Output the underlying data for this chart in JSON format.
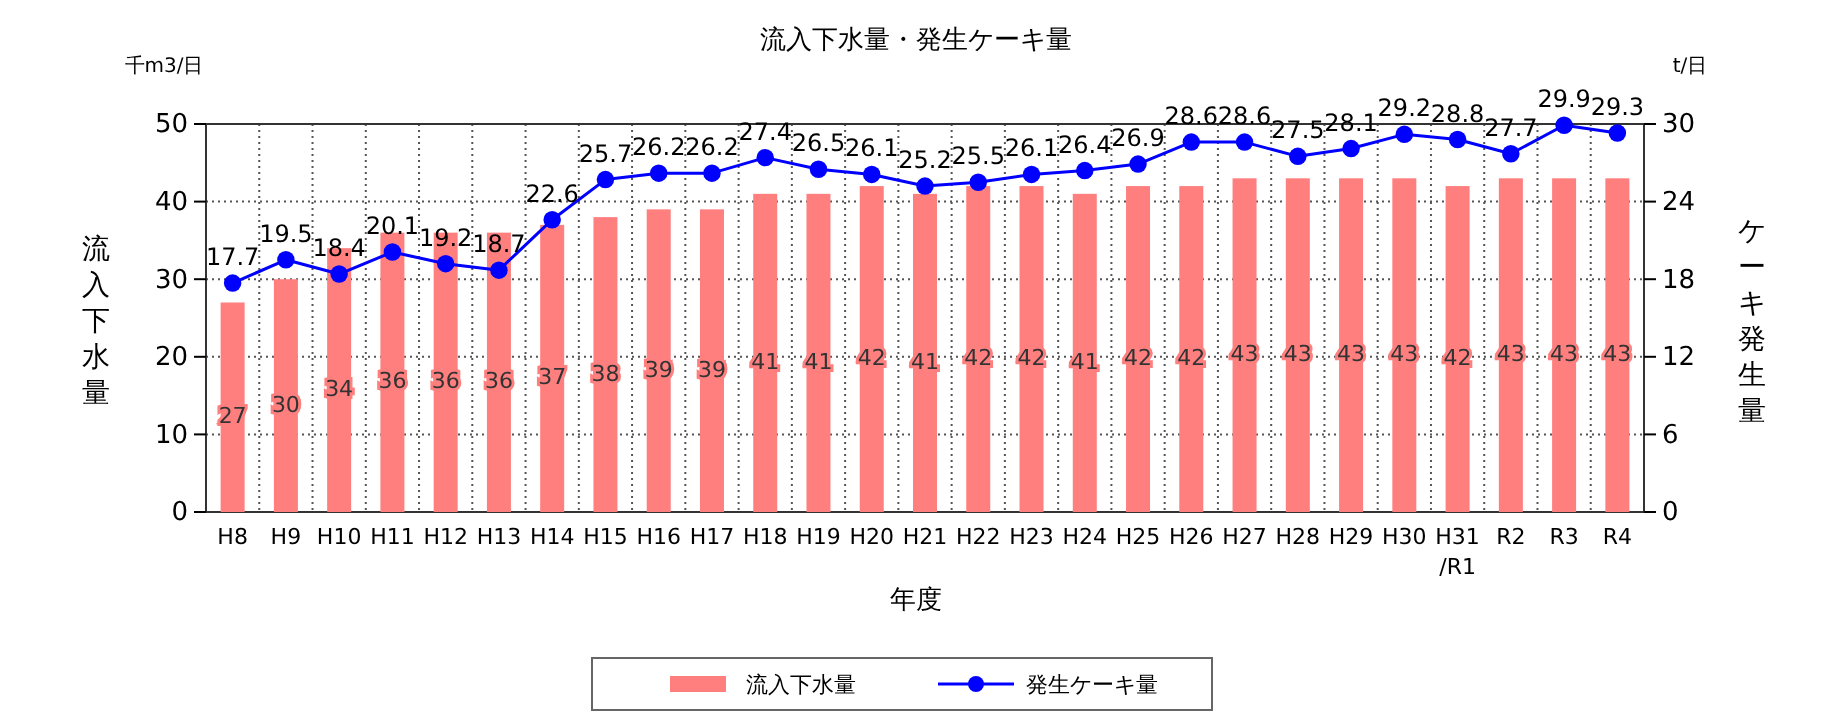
{
  "chart_data": {
    "type": "bar",
    "title": "流入下水量・発生ケーキ量",
    "xlabel": "年度",
    "ylabel": "流入下水量",
    "y2label": "ケーキ発生量",
    "annotations": [
      "千m3/日",
      "t/日"
    ],
    "categories": [
      "H8",
      "H9",
      "H10",
      "H11",
      "H12",
      "H13",
      "H14",
      "H15",
      "H16",
      "H17",
      "H18",
      "H19",
      "H20",
      "H21",
      "H22",
      "H23",
      "H24",
      "H25",
      "H26",
      "H27",
      "H28",
      "H29",
      "H30",
      "H31\n/R1",
      "R2",
      "R3",
      "R4"
    ],
    "series": [
      {
        "name": "流入下水量",
        "color": "#ff7f7f",
        "values": [
          27,
          30,
          34,
          36,
          36,
          36,
          37,
          38,
          39,
          39,
          41,
          41,
          42,
          41,
          42,
          42,
          41,
          42,
          42,
          43,
          43,
          43,
          43,
          42,
          43,
          43,
          43
        ]
      },
      {
        "name": "発生ケーキ量",
        "type": "line",
        "axis": "y2",
        "color": "#0000ff",
        "values": [
          17.7,
          19.5,
          18.4,
          20.1,
          19.2,
          18.7,
          22.6,
          25.7,
          26.2,
          26.2,
          27.4,
          26.5,
          26.1,
          25.2,
          25.5,
          26.1,
          26.4,
          26.9,
          28.6,
          28.6,
          27.5,
          28.1,
          29.2,
          28.8,
          27.7,
          29.9,
          29.3
        ]
      }
    ],
    "ylim": [
      0,
      50
    ],
    "yticks": [
      0,
      10,
      20,
      30,
      40,
      50
    ],
    "y2lim": [
      0,
      30
    ],
    "y2ticks": [
      0,
      6,
      12,
      18,
      24,
      30
    ],
    "grid": true,
    "legend": "bottom",
    "marker": "circle",
    "line_style": "solid",
    "data_labels": true
  }
}
